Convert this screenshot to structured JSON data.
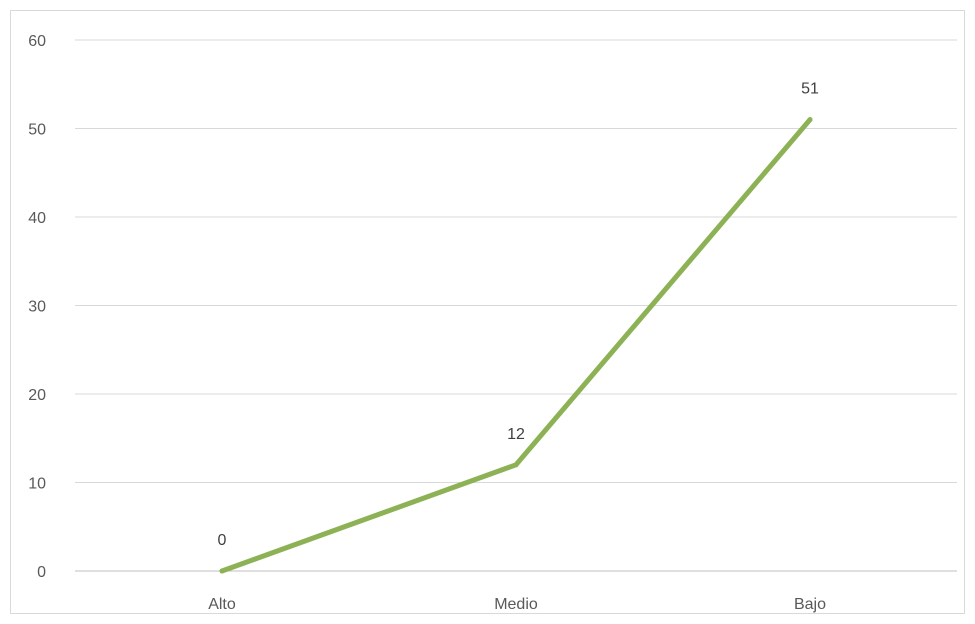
{
  "chart_data": {
    "type": "line",
    "title": "",
    "xlabel": "",
    "ylabel": "",
    "categories": [
      "Alto",
      "Medio",
      "Bajo"
    ],
    "series": [
      {
        "values": [
          0,
          12,
          51
        ],
        "color": "#8db255"
      }
    ],
    "data_labels": [
      "0",
      "12",
      "51"
    ],
    "ylim": [
      0,
      60
    ],
    "yticks": [
      0,
      10,
      20,
      30,
      40,
      50,
      60
    ],
    "ytick_labels": [
      "0",
      "10",
      "20",
      "30",
      "40",
      "50",
      "60"
    ],
    "grid": true,
    "legend": "none",
    "gridline_color": "#d9d9d9",
    "axis_color": "#bfbfbf"
  }
}
